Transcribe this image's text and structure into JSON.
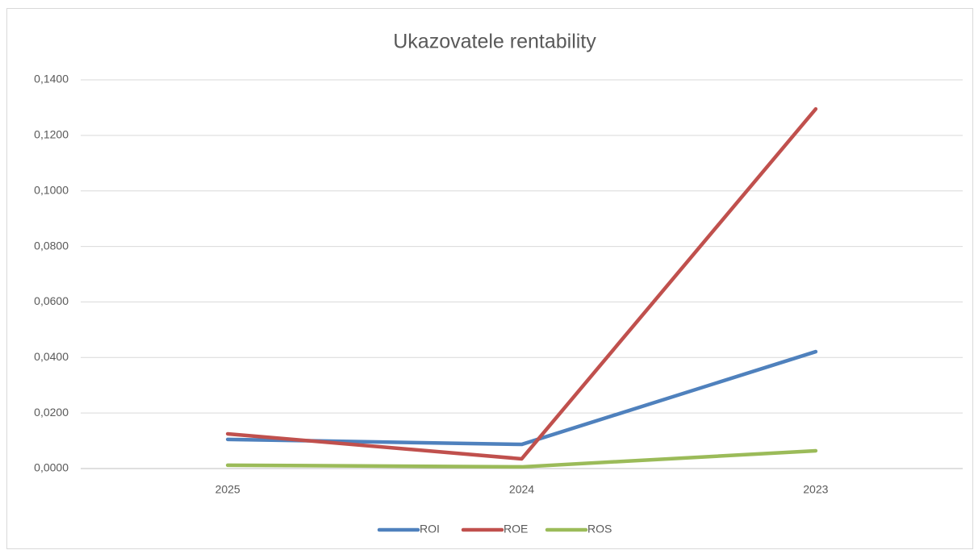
{
  "chart_data": {
    "type": "line",
    "title": "Ukazovatele rentability",
    "categories": [
      "2025",
      "2024",
      "2023"
    ],
    "series": [
      {
        "name": "ROI",
        "color": "#4f81bd",
        "values": [
          0.0105,
          0.0087,
          0.0421
        ]
      },
      {
        "name": "ROE",
        "color": "#c0504d",
        "values": [
          0.0125,
          0.0035,
          0.1295
        ]
      },
      {
        "name": "ROS",
        "color": "#9bbb59",
        "values": [
          0.0012,
          0.0006,
          0.0064
        ]
      }
    ],
    "ylim": [
      0,
      0.14
    ],
    "yticks": [
      {
        "value": 0,
        "label": "0,0000"
      },
      {
        "value": 0.02,
        "label": "0,0200"
      },
      {
        "value": 0.04,
        "label": "0,0400"
      },
      {
        "value": 0.06,
        "label": "0,0600"
      },
      {
        "value": 0.08,
        "label": "0,0800"
      },
      {
        "value": 0.1,
        "label": "0,1000"
      },
      {
        "value": 0.12,
        "label": "0,1200"
      },
      {
        "value": 0.14,
        "label": "0,1400"
      }
    ],
    "grid": true,
    "legend": "bottom"
  }
}
